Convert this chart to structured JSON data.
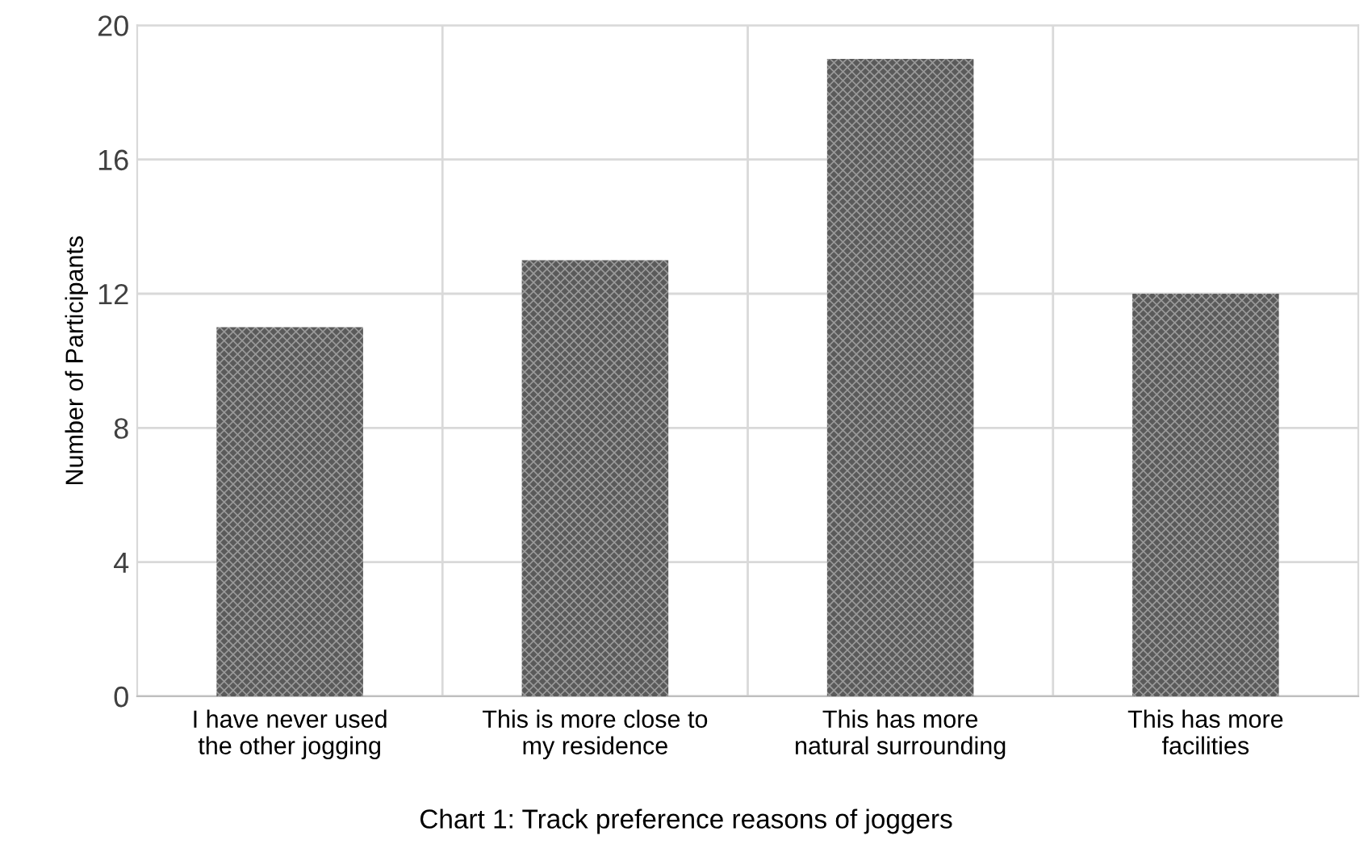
{
  "chart_data": {
    "type": "bar",
    "ylabel": "Number of Participants",
    "categories": [
      "I have never used\nthe other jogging",
      "This is more close to\nmy residence",
      "This has more\nnatural surrounding",
      "This has more\nfacilities"
    ],
    "values": [
      11,
      13,
      19,
      12
    ],
    "color": "#5a5a5a",
    "ylim": [
      0,
      20
    ],
    "yticks": [
      0,
      4,
      8,
      12,
      16,
      20
    ],
    "grid": true,
    "annotations": [
      "Chart 1: Track preference reasons of joggers"
    ]
  }
}
